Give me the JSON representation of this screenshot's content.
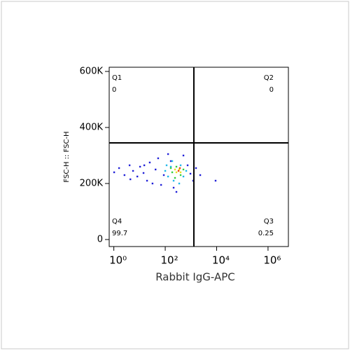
{
  "chart_data": {
    "type": "scatter",
    "xlabel": "Rabbit IgG-APC",
    "ylabel": "FSC-H :: FSC-H",
    "xscale": "log",
    "xlim": [
      0.66,
      6200000
    ],
    "xticks": [
      {
        "value": 1,
        "label": "10⁰"
      },
      {
        "value": 100,
        "label": "10²"
      },
      {
        "value": 10000,
        "label": "10⁴"
      },
      {
        "value": 1000000,
        "label": "10⁶"
      }
    ],
    "ylim": [
      -25000,
      615000
    ],
    "yticks": [
      {
        "value": 0,
        "label": "0"
      },
      {
        "value": 200000,
        "label": "200K"
      },
      {
        "value": 400000,
        "label": "400K"
      },
      {
        "value": 600000,
        "label": "600K"
      }
    ],
    "gates": {
      "x": 1300,
      "y": 345000
    },
    "quadrants": [
      {
        "label": "Q1",
        "value": 0
      },
      {
        "label": "Q2",
        "value": 0
      },
      {
        "label": "Q3",
        "value": 0.25
      },
      {
        "label": "Q4",
        "value": 99.7
      }
    ],
    "series": [
      {
        "color": "#2020d8",
        "x": [
          1.03,
          1.6,
          2.6,
          4.1,
          5.6,
          8.2,
          10.5,
          14.3,
          19.6,
          25,
          32,
          42,
          53,
          69,
          88,
          129,
          212,
          510,
          743,
          955,
          1225,
          1575,
          2300,
          9100,
          272,
          165,
          4.4,
          15.3
        ],
        "y": [
          240000,
          255000,
          230000,
          265000,
          245000,
          225000,
          260000,
          237500,
          210000,
          275000,
          200000,
          250000,
          290000,
          195000,
          230000,
          305000,
          185000,
          300000,
          265000,
          235000,
          210000,
          255000,
          230000,
          210000,
          170000,
          280000,
          215000,
          265000
        ]
      },
      {
        "color": "#20b8e8",
        "x": [
          100,
          129,
          165,
          212,
          397,
          510,
          350,
          113,
          655,
          187
        ],
        "y": [
          245000,
          225000,
          260000,
          210000,
          265000,
          225000,
          200000,
          265000,
          245000,
          280000
        ]
      },
      {
        "color": "#30d040",
        "x": [
          187,
          272,
          397,
          240,
          510,
          165
        ],
        "y": [
          240000,
          260000,
          230000,
          220000,
          250000,
          255000
        ]
      },
      {
        "color": "#e8e020",
        "x": [
          272,
          350,
          397,
          240
        ],
        "y": [
          240000,
          250000,
          240000,
          250000
        ]
      },
      {
        "color": "#f04010",
        "x": [
          329,
          372
        ],
        "y": [
          245000,
          255000
        ]
      }
    ]
  }
}
